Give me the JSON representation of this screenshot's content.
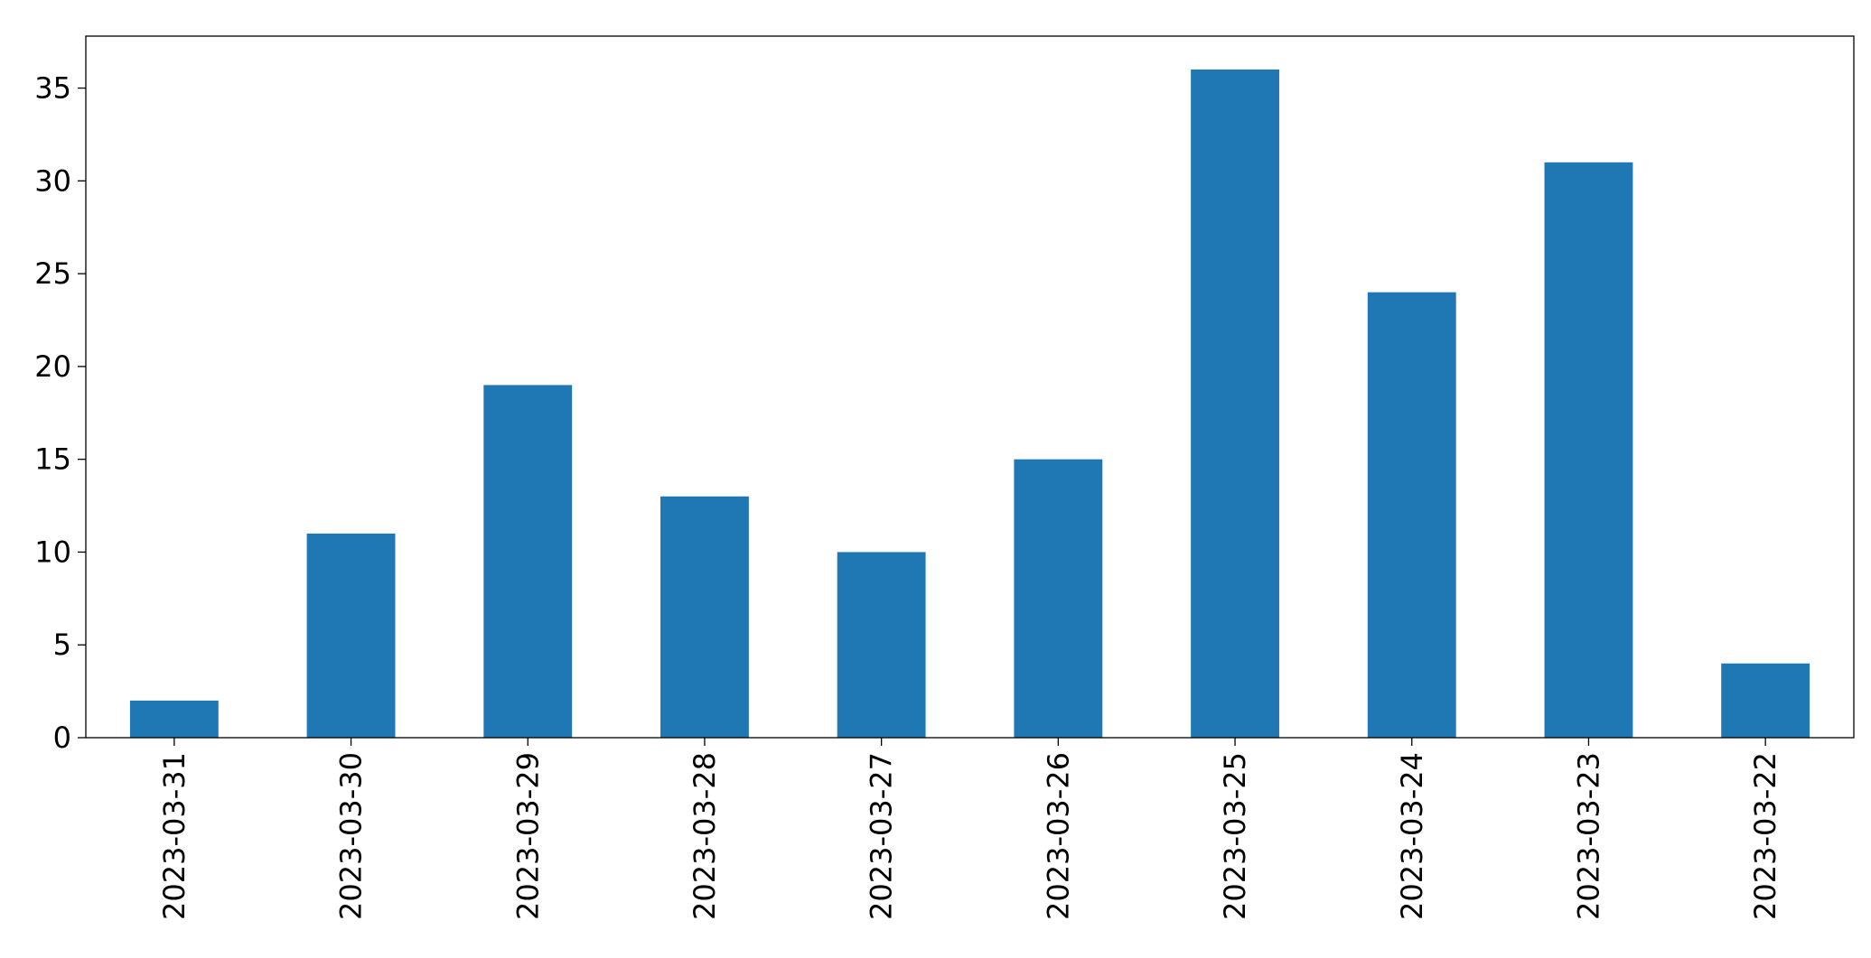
{
  "chart_data": {
    "type": "bar",
    "categories": [
      "2023-03-31",
      "2023-03-30",
      "2023-03-29",
      "2023-03-28",
      "2023-03-27",
      "2023-03-26",
      "2023-03-25",
      "2023-03-24",
      "2023-03-23",
      "2023-03-22"
    ],
    "values": [
      2,
      11,
      19,
      13,
      10,
      15,
      36,
      24,
      31,
      4
    ],
    "color": "#1f77b4",
    "ylim": [
      0,
      37.8
    ],
    "yticks": [
      0,
      5,
      10,
      15,
      20,
      25,
      30,
      35
    ],
    "grid": false
  }
}
